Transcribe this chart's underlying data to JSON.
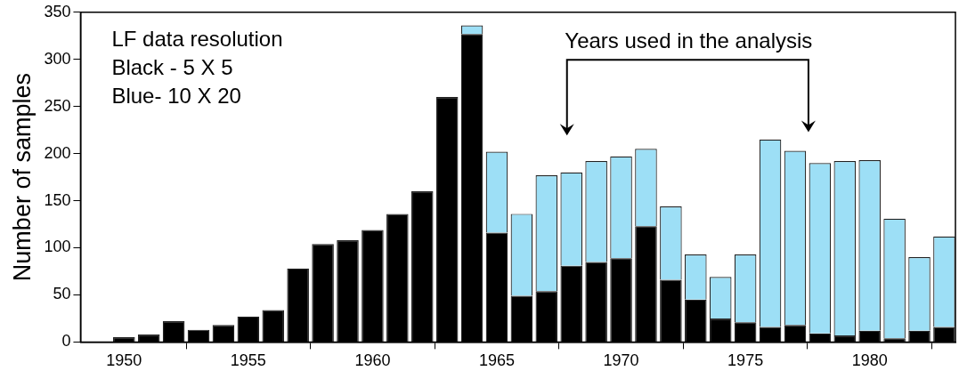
{
  "chart_data": {
    "type": "bar",
    "stacked": true,
    "ylabel": "Number of samples",
    "x": [
      1950,
      1951,
      1952,
      1953,
      1954,
      1955,
      1956,
      1957,
      1958,
      1959,
      1960,
      1961,
      1962,
      1963,
      1964,
      1965,
      1966,
      1967,
      1968,
      1969,
      1970,
      1971,
      1972,
      1973,
      1974,
      1975,
      1976,
      1977,
      1978,
      1979,
      1980,
      1981,
      1982,
      1983
    ],
    "series": [
      {
        "color": "#000000",
        "values": [
          5,
          8,
          22,
          13,
          18,
          27,
          34,
          78,
          104,
          108,
          119,
          136,
          160,
          260,
          327,
          116,
          49,
          54,
          81,
          85,
          89,
          123,
          66,
          45,
          25,
          21,
          16,
          18,
          9,
          7,
          12,
          4,
          12,
          16
        ]
      },
      {
        "color": "#9ddff6",
        "values": [
          null,
          null,
          null,
          null,
          null,
          null,
          null,
          null,
          null,
          null,
          null,
          null,
          null,
          null,
          9,
          86,
          87,
          123,
          99,
          107,
          108,
          82,
          78,
          48,
          44,
          72,
          199,
          185,
          181,
          185,
          181,
          127,
          78,
          96
        ]
      }
    ],
    "xlim": [
      1948.25,
      1983.45
    ],
    "xticks": [
      1950,
      1955,
      1960,
      1965,
      1970,
      1975,
      1980
    ],
    "ylim": [
      0,
      350
    ],
    "yticks": [
      0,
      50,
      100,
      150,
      200,
      250,
      300,
      350
    ],
    "grid": false,
    "legend": false,
    "annotations": [
      "LF data resolution",
      "Black - 5 X 5",
      "Blue- 10 X 20",
      "Years used in the analysis"
    ]
  }
}
